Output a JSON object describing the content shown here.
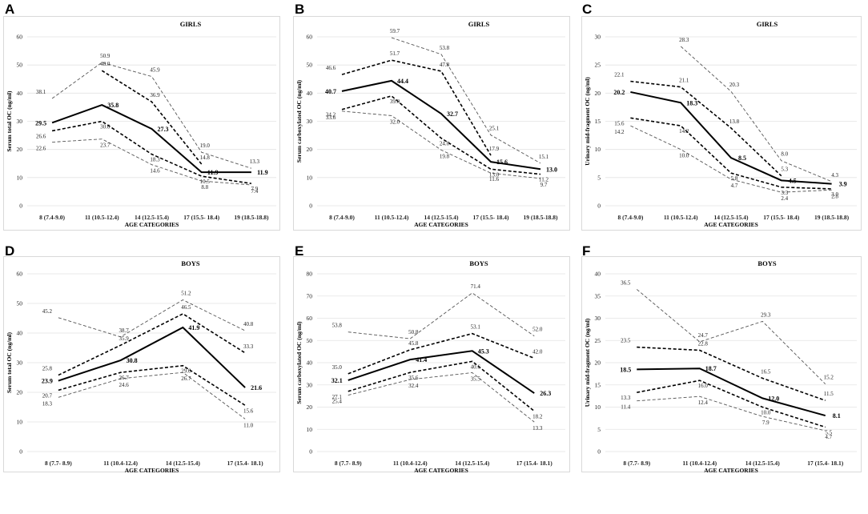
{
  "chart_data": [
    {
      "panel": "A",
      "group": "GIRLS",
      "type": "line",
      "ylabel": "Serum total OC  (ng/ml)",
      "xlabel": "AGE CATEGORIES",
      "ylim": [
        0,
        60
      ],
      "yticks": [
        0,
        10,
        20,
        30,
        40,
        50,
        60
      ],
      "categories": [
        "8 (7.4-9.0)",
        "11 (10.5-12.4)",
        "14 (12.5-15.4)",
        "17 (15.5- 18.4)",
        "19 (18.5-18.8)"
      ],
      "series": [
        {
          "name": "upper outer",
          "style": "outer",
          "values": [
            38.1,
            50.9,
            45.9,
            19.0,
            13.3
          ]
        },
        {
          "name": "upper inner",
          "style": "inner",
          "values": [
            null,
            48.0,
            36.9,
            14.8,
            null
          ]
        },
        {
          "name": "median",
          "style": "median",
          "values": [
            29.5,
            35.8,
            27.3,
            11.9,
            11.9
          ]
        },
        {
          "name": "lower inner",
          "style": "inner",
          "values": [
            26.6,
            30.0,
            18.3,
            10.5,
            7.9
          ]
        },
        {
          "name": "lower outer",
          "style": "outer",
          "values": [
            22.6,
            23.7,
            14.6,
            8.8,
            7.4
          ]
        }
      ]
    },
    {
      "panel": "B",
      "group": "GIRLS",
      "type": "line",
      "ylabel": "Serum carboxylated OC  (ng/ml)",
      "xlabel": "AGE CATEGORIES",
      "ylim": [
        0,
        60
      ],
      "yticks": [
        0,
        10,
        20,
        30,
        40,
        50,
        60
      ],
      "categories": [
        "8 (7.4-9.0)",
        "11 (10.5-12.4)",
        "14 (12.5-15.4)",
        "17 (15.5- 18.4)",
        "19 (18.5-18.8)"
      ],
      "series": [
        {
          "name": "upper outer",
          "style": "outer",
          "values": [
            null,
            59.7,
            53.8,
            25.1,
            15.1
          ]
        },
        {
          "name": "upper inner",
          "style": "inner",
          "values": [
            46.6,
            51.7,
            47.8,
            17.9,
            null
          ]
        },
        {
          "name": "median",
          "style": "median",
          "values": [
            40.7,
            44.4,
            32.7,
            15.6,
            13.0
          ]
        },
        {
          "name": "lower inner",
          "style": "inner",
          "values": [
            34.2,
            39.0,
            24.0,
            13.0,
            11.2
          ]
        },
        {
          "name": "lower outer",
          "style": "outer",
          "values": [
            33.6,
            32.0,
            19.8,
            11.6,
            9.7
          ]
        }
      ]
    },
    {
      "panel": "C",
      "group": "GIRLS",
      "type": "line",
      "ylabel": "Urinary mid-fragment OC  (ng/ml)",
      "xlabel": "AGE CATEGORIES",
      "ylim": [
        0,
        30
      ],
      "yticks": [
        0,
        5,
        10,
        15,
        20,
        25,
        30
      ],
      "categories": [
        "8 (7.4-9.0)",
        "11 (10.5-12.4)",
        "14 (12.5-15.4)",
        "17 (15.5- 18.4)",
        "19 (18.5-18.8)"
      ],
      "series": [
        {
          "name": "upper outer",
          "style": "outer",
          "values": [
            null,
            28.3,
            20.3,
            8.0,
            4.3
          ]
        },
        {
          "name": "upper inner",
          "style": "inner",
          "values": [
            22.1,
            21.1,
            13.8,
            5.3,
            null
          ]
        },
        {
          "name": "median",
          "style": "median",
          "values": [
            20.2,
            18.3,
            8.5,
            4.5,
            3.9
          ]
        },
        {
          "name": "lower inner",
          "style": "inner",
          "values": [
            15.6,
            14.2,
            5.8,
            3.3,
            3.0
          ]
        },
        {
          "name": "lower outer",
          "style": "outer",
          "values": [
            14.2,
            10.0,
            4.7,
            2.4,
            2.8
          ]
        }
      ]
    },
    {
      "panel": "D",
      "group": "BOYS",
      "type": "line",
      "ylabel": "Serum total OC  (ng/ml)",
      "xlabel": "AGE CATEGORIES",
      "ylim": [
        0,
        60
      ],
      "yticks": [
        0,
        10,
        20,
        30,
        40,
        50,
        60
      ],
      "categories": [
        "8 (7.7- 8.9)",
        "11 (10.4-12.4)",
        "14 (12.5-15.4)",
        "17 (15.4- 18.1)"
      ],
      "series": [
        {
          "name": "upper outer",
          "style": "outer",
          "values": [
            45.2,
            38.7,
            51.2,
            40.8
          ]
        },
        {
          "name": "upper inner",
          "style": "inner",
          "values": [
            25.8,
            35.9,
            46.5,
            33.3
          ]
        },
        {
          "name": "median",
          "style": "median",
          "values": [
            23.9,
            30.8,
            41.9,
            21.6
          ]
        },
        {
          "name": "lower inner",
          "style": "inner",
          "values": [
            20.7,
            26.7,
            29.0,
            15.6
          ]
        },
        {
          "name": "lower outer",
          "style": "outer",
          "values": [
            18.3,
            24.6,
            26.7,
            11.0
          ]
        }
      ]
    },
    {
      "panel": "E",
      "group": "BOYS",
      "type": "line",
      "ylabel": "Serum carboxylated OC  (ng/ml)",
      "xlabel": "AGE CATEGORIES",
      "ylim": [
        0,
        80
      ],
      "yticks": [
        0,
        10,
        20,
        30,
        40,
        50,
        60,
        70,
        80
      ],
      "categories": [
        "8 (7.7- 8.9)",
        "11 (10.4-12.4)",
        "14 (12.5-15.4)",
        "17 (15.4- 18.1)"
      ],
      "series": [
        {
          "name": "upper outer",
          "style": "outer",
          "values": [
            53.8,
            50.8,
            71.4,
            52.0
          ]
        },
        {
          "name": "upper inner",
          "style": "inner",
          "values": [
            35.0,
            45.8,
            53.1,
            42.0
          ]
        },
        {
          "name": "median",
          "style": "median",
          "values": [
            32.1,
            41.4,
            45.3,
            26.3
          ]
        },
        {
          "name": "lower inner",
          "style": "inner",
          "values": [
            27.1,
            35.6,
            40.6,
            18.2
          ]
        },
        {
          "name": "lower outer",
          "style": "outer",
          "values": [
            25.4,
            32.4,
            35.5,
            13.3
          ]
        }
      ]
    },
    {
      "panel": "F",
      "group": "BOYS",
      "type": "line",
      "ylabel": "Urinary mid-fragment OC  (ng/ml)",
      "xlabel": "AGE CATEGORIES",
      "ylim": [
        0,
        40
      ],
      "yticks": [
        0,
        5,
        10,
        15,
        20,
        25,
        30,
        35,
        40
      ],
      "categories": [
        "8 (7.7- 8.9)",
        "11 (10.4-12.4)",
        "14 (12.5-15.4)",
        "17 (15.4- 18.1)"
      ],
      "series": [
        {
          "name": "upper outer",
          "style": "outer",
          "values": [
            36.5,
            24.7,
            29.3,
            15.2
          ]
        },
        {
          "name": "upper inner",
          "style": "inner",
          "values": [
            23.5,
            22.8,
            16.5,
            11.5
          ]
        },
        {
          "name": "median",
          "style": "median",
          "values": [
            18.5,
            18.7,
            12.0,
            8.1
          ]
        },
        {
          "name": "lower inner",
          "style": "inner",
          "values": [
            13.3,
            16.0,
            10.0,
            5.5
          ]
        },
        {
          "name": "lower outer",
          "style": "outer",
          "values": [
            11.4,
            12.4,
            7.9,
            4.7
          ]
        }
      ]
    }
  ]
}
